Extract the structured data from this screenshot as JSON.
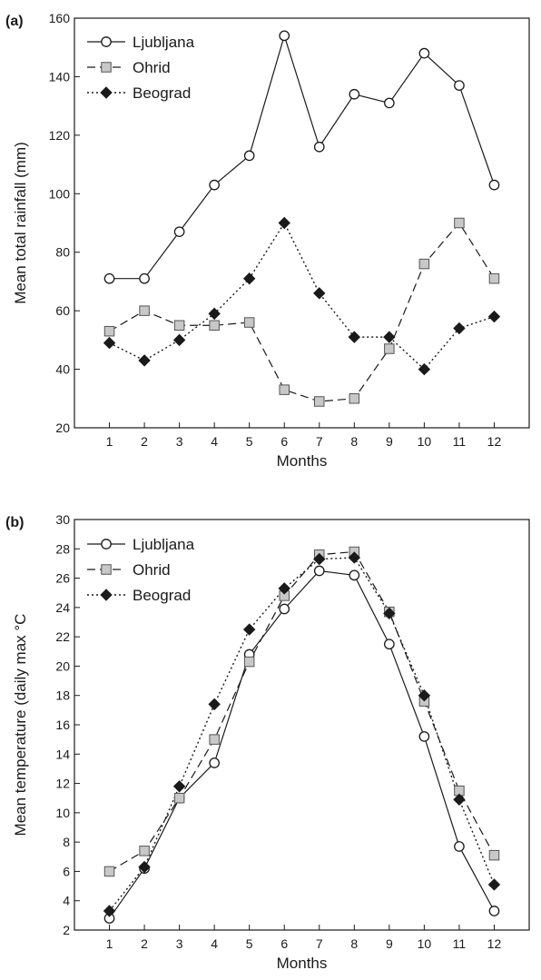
{
  "chart_data": [
    {
      "panel": "(a)",
      "type": "line",
      "xlabel": "Months",
      "ylabel": "Mean total rainfall (mm)",
      "categories": [
        "1",
        "2",
        "3",
        "4",
        "5",
        "6",
        "7",
        "8",
        "9",
        "10",
        "11",
        "12"
      ],
      "x": [
        1,
        2,
        3,
        4,
        5,
        6,
        7,
        8,
        9,
        10,
        11,
        12
      ],
      "xlim": [
        0,
        13
      ],
      "ylim": [
        20,
        160
      ],
      "yticks": [
        "20",
        "40",
        "60",
        "80",
        "100",
        "120",
        "140",
        "160"
      ],
      "grid": false,
      "legend": "top-left",
      "series": [
        {
          "name": "Ljubljana",
          "marker": "circle",
          "line": "solid",
          "values": [
            71,
            71,
            87,
            103,
            113,
            154,
            116,
            134,
            131,
            148,
            137,
            103
          ]
        },
        {
          "name": "Ohrid",
          "marker": "square",
          "line": "dashed",
          "values": [
            53,
            60,
            55,
            55,
            56,
            33,
            29,
            30,
            47,
            76,
            90,
            71
          ]
        },
        {
          "name": "Beograd",
          "marker": "diamond",
          "line": "dotted",
          "values": [
            49,
            43,
            50,
            59,
            71,
            90,
            66,
            51,
            51,
            40,
            54,
            58
          ]
        }
      ]
    },
    {
      "panel": "(b)",
      "type": "line",
      "xlabel": "Months",
      "ylabel": "Mean temperature (daily max °C",
      "categories": [
        "1",
        "2",
        "3",
        "4",
        "5",
        "6",
        "7",
        "8",
        "9",
        "10",
        "11",
        "12"
      ],
      "x": [
        1,
        2,
        3,
        4,
        5,
        6,
        7,
        8,
        9,
        10,
        11,
        12
      ],
      "xlim": [
        0,
        13
      ],
      "ylim": [
        2,
        30
      ],
      "yticks": [
        "2",
        "4",
        "6",
        "8",
        "10",
        "12",
        "14",
        "16",
        "18",
        "20",
        "22",
        "24",
        "26",
        "28",
        "30"
      ],
      "grid": false,
      "legend": "top-left",
      "series": [
        {
          "name": "Ljubljana",
          "marker": "circle",
          "line": "solid",
          "values": [
            2.8,
            6.2,
            11.0,
            13.4,
            20.8,
            23.9,
            26.5,
            26.2,
            21.5,
            15.2,
            7.7,
            3.3
          ]
        },
        {
          "name": "Ohrid",
          "marker": "square",
          "line": "dashed",
          "values": [
            6.0,
            7.4,
            11.0,
            15.0,
            20.3,
            24.8,
            27.6,
            27.8,
            23.7,
            17.6,
            11.5,
            7.1
          ]
        },
        {
          "name": "Beograd",
          "marker": "diamond",
          "line": "dotted",
          "values": [
            3.3,
            6.3,
            11.8,
            17.4,
            22.5,
            25.3,
            27.3,
            27.4,
            23.6,
            18.0,
            10.9,
            5.1
          ]
        }
      ]
    }
  ],
  "colors": {
    "axis": "#1a1a1a",
    "line": "#1a1a1a",
    "circle_fill": "#ffffff",
    "square_fill": "#c8c8c8",
    "diamond_fill": "#1a1a1a"
  }
}
